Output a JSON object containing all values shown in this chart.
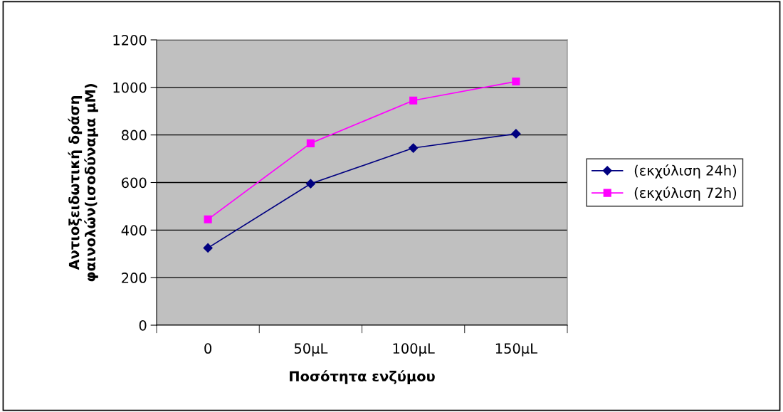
{
  "chart_data": {
    "type": "line",
    "xlabel": "Ποσότητα ενζύμου",
    "ylabel": "Αντιοξειδωτική δράση\nφαινολών(ισοδύναμα μM)",
    "categories": [
      "0",
      "50μL",
      "100μL",
      "150μL"
    ],
    "series": [
      {
        "name": "(εκχύλιση 24h)",
        "color": "#000080",
        "marker": "diamond",
        "values": [
          325,
          595,
          745,
          805
        ]
      },
      {
        "name": "(εκχύλιση 72h)",
        "color": "#ff00ff",
        "marker": "square",
        "values": [
          445,
          765,
          945,
          1025
        ]
      }
    ],
    "ylim": [
      0,
      1200
    ],
    "yticks": [
      0,
      200,
      400,
      600,
      800,
      1000,
      1200
    ],
    "grid": "y",
    "legend": "right"
  }
}
